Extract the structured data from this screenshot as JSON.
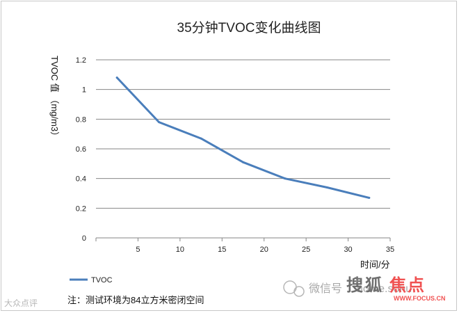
{
  "chart_data": {
    "type": "line",
    "title": "35分钟TVOC变化曲线图",
    "xlabel": "时间/分",
    "ylabel": "TVOC 值 （mg/m3）",
    "xlim": [
      0,
      35
    ],
    "ylim": [
      0,
      1.2
    ],
    "x_ticks": [
      "5",
      "10",
      "15",
      "20",
      "25",
      "30",
      "35"
    ],
    "y_ticks": [
      "0",
      "0.2",
      "0.4",
      "0.6",
      "0.8",
      "1",
      "1.2"
    ],
    "grid": true,
    "legend_position": "bottom-left",
    "series": [
      {
        "name": "TVOC",
        "color": "#4a7ebb",
        "x": [
          2.5,
          7.5,
          12.5,
          17.5,
          22.5,
          27.5,
          32.5
        ],
        "y": [
          1.08,
          0.78,
          0.67,
          0.51,
          0.4,
          0.34,
          0.27
        ]
      }
    ]
  },
  "note": "注：测试环境为84立方米密闭空间",
  "watermarks": {
    "weixin": "微信号",
    "home": "home.sohu",
    "sou": "搜",
    "hu": "狐",
    "jiao": "焦",
    "dian": "点",
    "focus": "WWW.FOCUS.CN",
    "left": "大众点评"
  }
}
